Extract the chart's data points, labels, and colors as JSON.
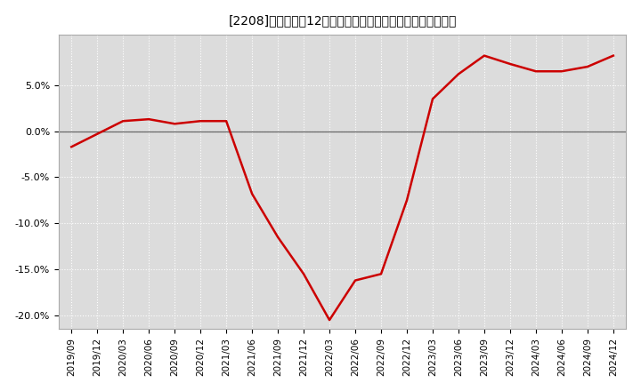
{
  "title": "[2208]　売上高の12か月移動合計の対前年同期増減率の推移",
  "line_color": "#cc0000",
  "background_color": "#ffffff",
  "plot_bg_color": "#dcdcdc",
  "grid_color": "#ffffff",
  "ylim": [
    -0.215,
    0.105
  ],
  "yticks": [
    -0.2,
    -0.15,
    -0.1,
    -0.05,
    0.0,
    0.05
  ],
  "dates": [
    "2019/09",
    "2019/12",
    "2020/03",
    "2020/06",
    "2020/09",
    "2020/12",
    "2021/03",
    "2021/06",
    "2021/09",
    "2021/12",
    "2022/03",
    "2022/06",
    "2022/09",
    "2022/12",
    "2023/03",
    "2023/06",
    "2023/09",
    "2023/12",
    "2024/03",
    "2024/06",
    "2024/09",
    "2024/12"
  ],
  "values": [
    -0.017,
    -0.003,
    0.011,
    0.013,
    0.008,
    0.011,
    0.011,
    -0.068,
    -0.115,
    -0.155,
    -0.205,
    -0.162,
    -0.155,
    -0.075,
    0.035,
    0.062,
    0.082,
    0.073,
    0.065,
    0.065,
    0.07,
    0.082
  ]
}
